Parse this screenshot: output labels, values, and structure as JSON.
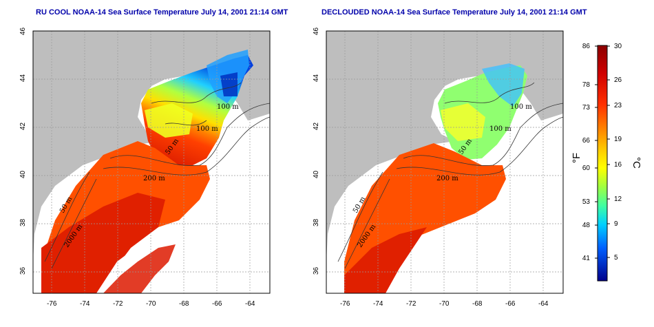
{
  "panels": [
    {
      "id": "left",
      "title": "RU COOL NOAA-14 Sea Surface Temperature July 14, 2001 21:14 GMT",
      "x_ticks": [
        "-76",
        "-74",
        "-72",
        "-70",
        "-68",
        "-66",
        "-64"
      ],
      "y_ticks": [
        "36",
        "38",
        "40",
        "42",
        "44",
        "46"
      ],
      "contour_labels": [
        "100 m",
        "100 m",
        "50 m",
        "200 m",
        "50 m",
        "2000 m"
      ]
    },
    {
      "id": "right",
      "title": "DECLOUDED NOAA-14 Sea Surface Temperature July 14, 2001 21:14 GMT",
      "x_ticks": [
        "-76",
        "-74",
        "-72",
        "-70",
        "-68",
        "-66",
        "-64"
      ],
      "y_ticks": [
        "36",
        "38",
        "40",
        "42",
        "44",
        "46"
      ],
      "contour_labels": [
        "100 m",
        "100 m",
        "50 m",
        "200 m",
        "50 m",
        "2000 m"
      ]
    }
  ],
  "colorbar": {
    "fahrenheit_label": "°F",
    "celsius_label": "°C",
    "fahrenheit_ticks": [
      "86",
      "78",
      "73",
      "66",
      "60",
      "53",
      "48",
      "41"
    ],
    "celsius_ticks": [
      "30",
      "26",
      "23",
      "19",
      "16",
      "12",
      "9",
      "5"
    ],
    "colors": [
      "#00008b",
      "#0000ff",
      "#0080ff",
      "#00e0ff",
      "#40ff80",
      "#c0ff40",
      "#ffff00",
      "#ffc000",
      "#ff6000",
      "#ff0000",
      "#c00000",
      "#8b0000"
    ],
    "land_color": "#bebebe",
    "range_c": [
      3,
      30
    ]
  }
}
